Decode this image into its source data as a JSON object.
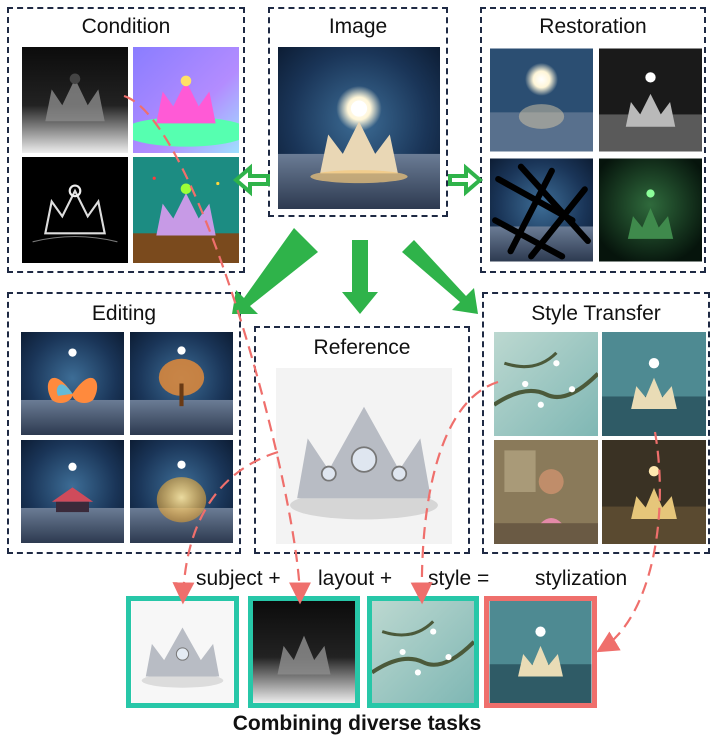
{
  "panels": {
    "condition": "Condition",
    "image": "Image",
    "restoration": "Restoration",
    "editing": "Editing",
    "reference": "Reference",
    "style_transfer": "Style Transfer"
  },
  "combo": {
    "subject": "subject +",
    "layout": "layout +",
    "style": "style =",
    "result": "stylization"
  },
  "footer_title": "Combining diverse tasks",
  "colors": {
    "panel_border": "#1f2a44",
    "arrow_green": "#2fb34a",
    "arrow_red": "#ef6f6c",
    "frame_teal": "#27c7a8",
    "frame_red": "#ef6f6c"
  }
}
